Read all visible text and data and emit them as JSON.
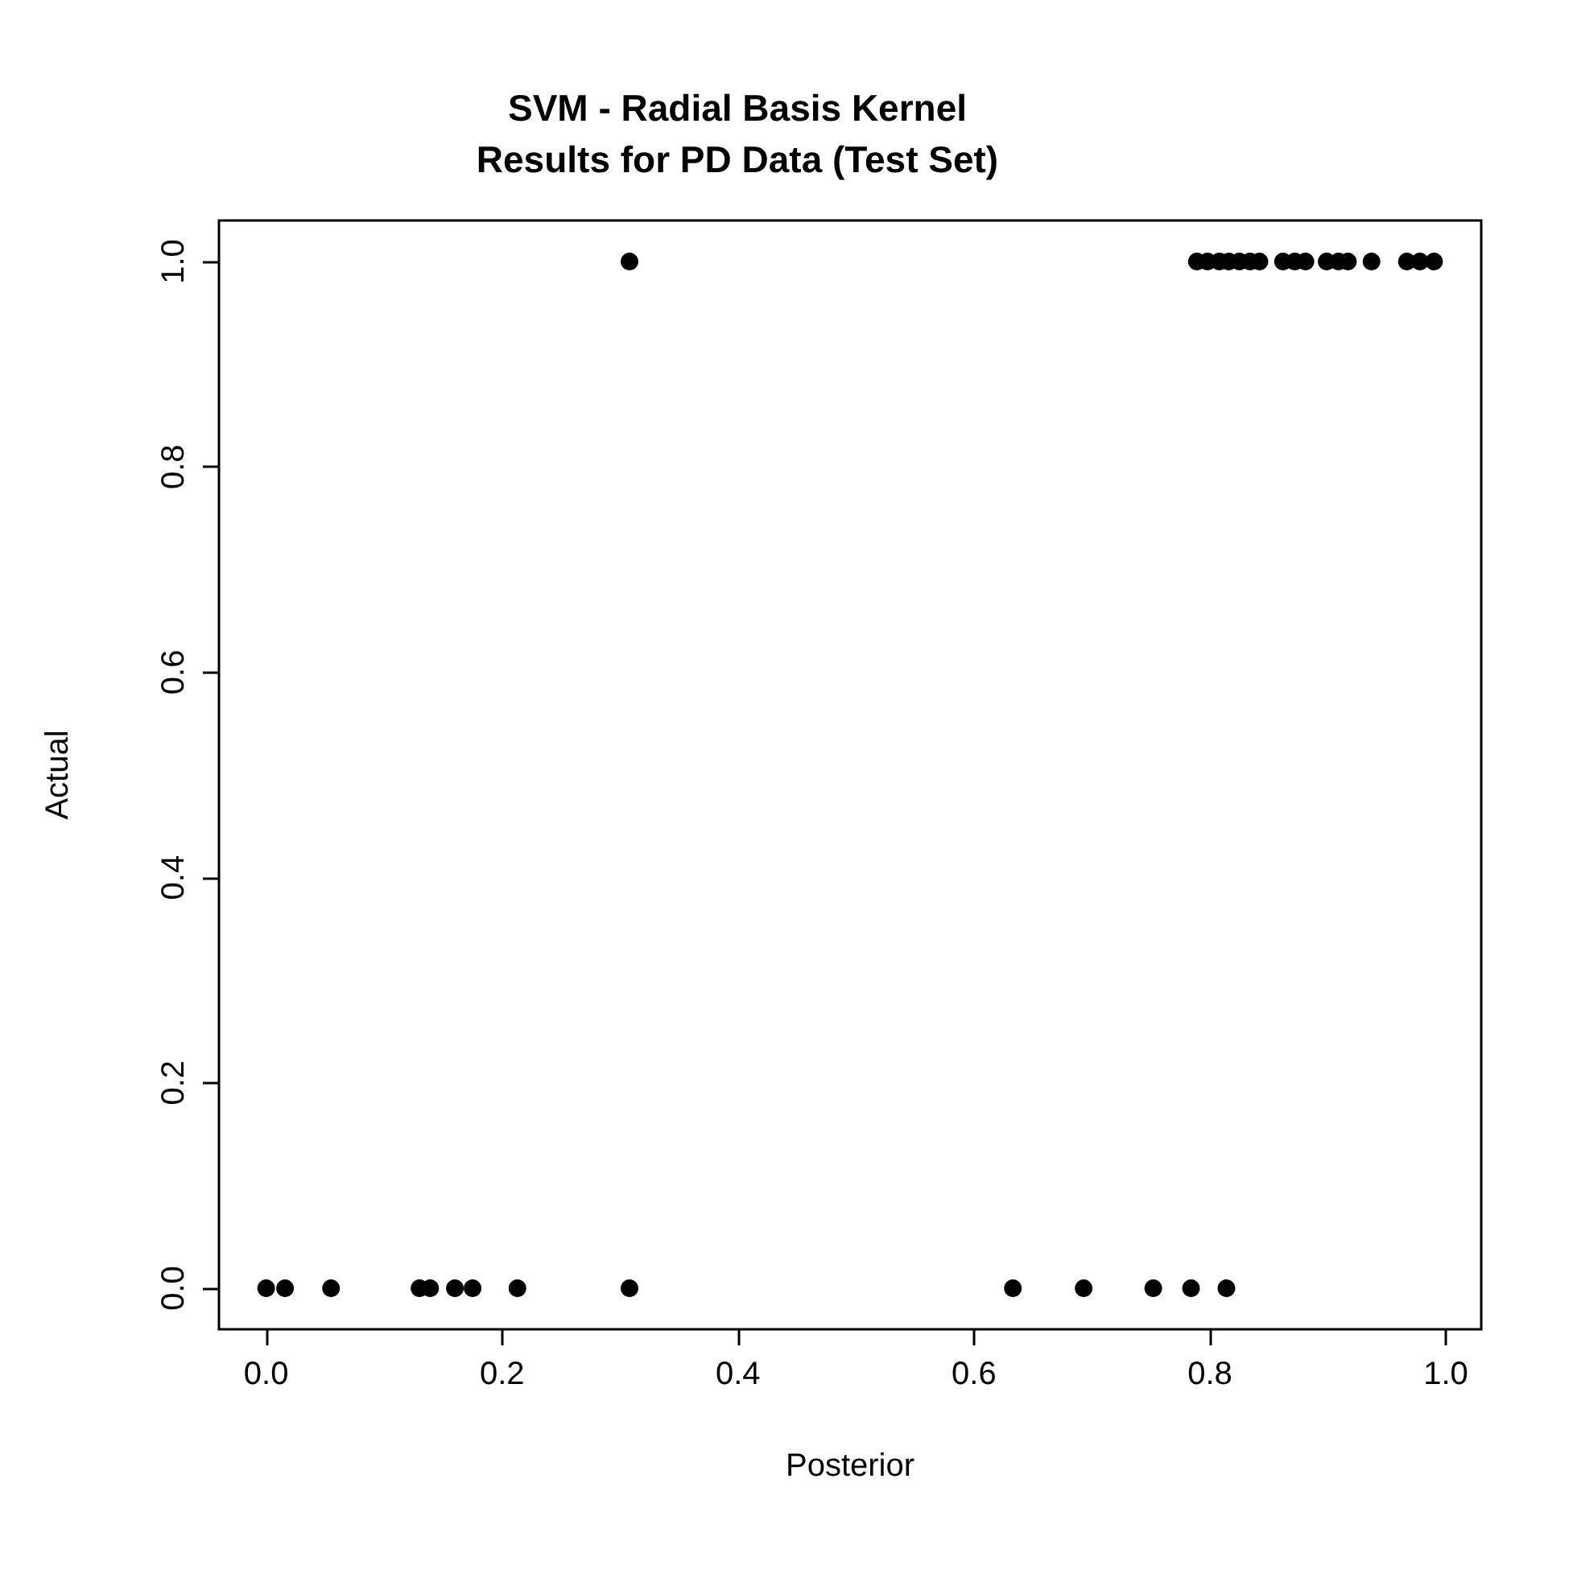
{
  "chart_data": {
    "type": "scatter",
    "title": "SVM - Radial Basis Kernel\nResults for PD Data (Test Set)",
    "xlabel": "Posterior",
    "ylabel": "Actual",
    "x": [
      0.0,
      0.016,
      0.055,
      0.13,
      0.139,
      0.16,
      0.175,
      0.213,
      0.308,
      0.633,
      0.693,
      0.752,
      0.784,
      0.814,
      0.308,
      0.789,
      0.798,
      0.808,
      0.816,
      0.825,
      0.834,
      0.842,
      0.862,
      0.872,
      0.881,
      0.899,
      0.909,
      0.917,
      0.937,
      0.967,
      0.978,
      0.99
    ],
    "values": [
      0,
      0,
      0,
      0,
      0,
      0,
      0,
      0,
      0,
      0,
      0,
      0,
      0,
      0,
      1,
      1,
      1,
      1,
      1,
      1,
      1,
      1,
      1,
      1,
      1,
      1,
      1,
      1,
      1,
      1,
      1,
      1
    ],
    "color": "#000000",
    "marker": "circle",
    "grid": false,
    "xlim": [
      -0.04,
      1.03
    ],
    "ylim": [
      -0.04,
      1.04
    ],
    "xticks": [
      {
        "value": 0,
        "label": "0.0"
      },
      0.2,
      0.4,
      0.6,
      0.8,
      {
        "value": 1,
        "label": "1.0"
      }
    ],
    "yticks": [
      {
        "value": 0,
        "label": "0.0"
      },
      0.2,
      0.4,
      0.6,
      0.8,
      {
        "value": 1,
        "label": "1.0"
      }
    ]
  }
}
